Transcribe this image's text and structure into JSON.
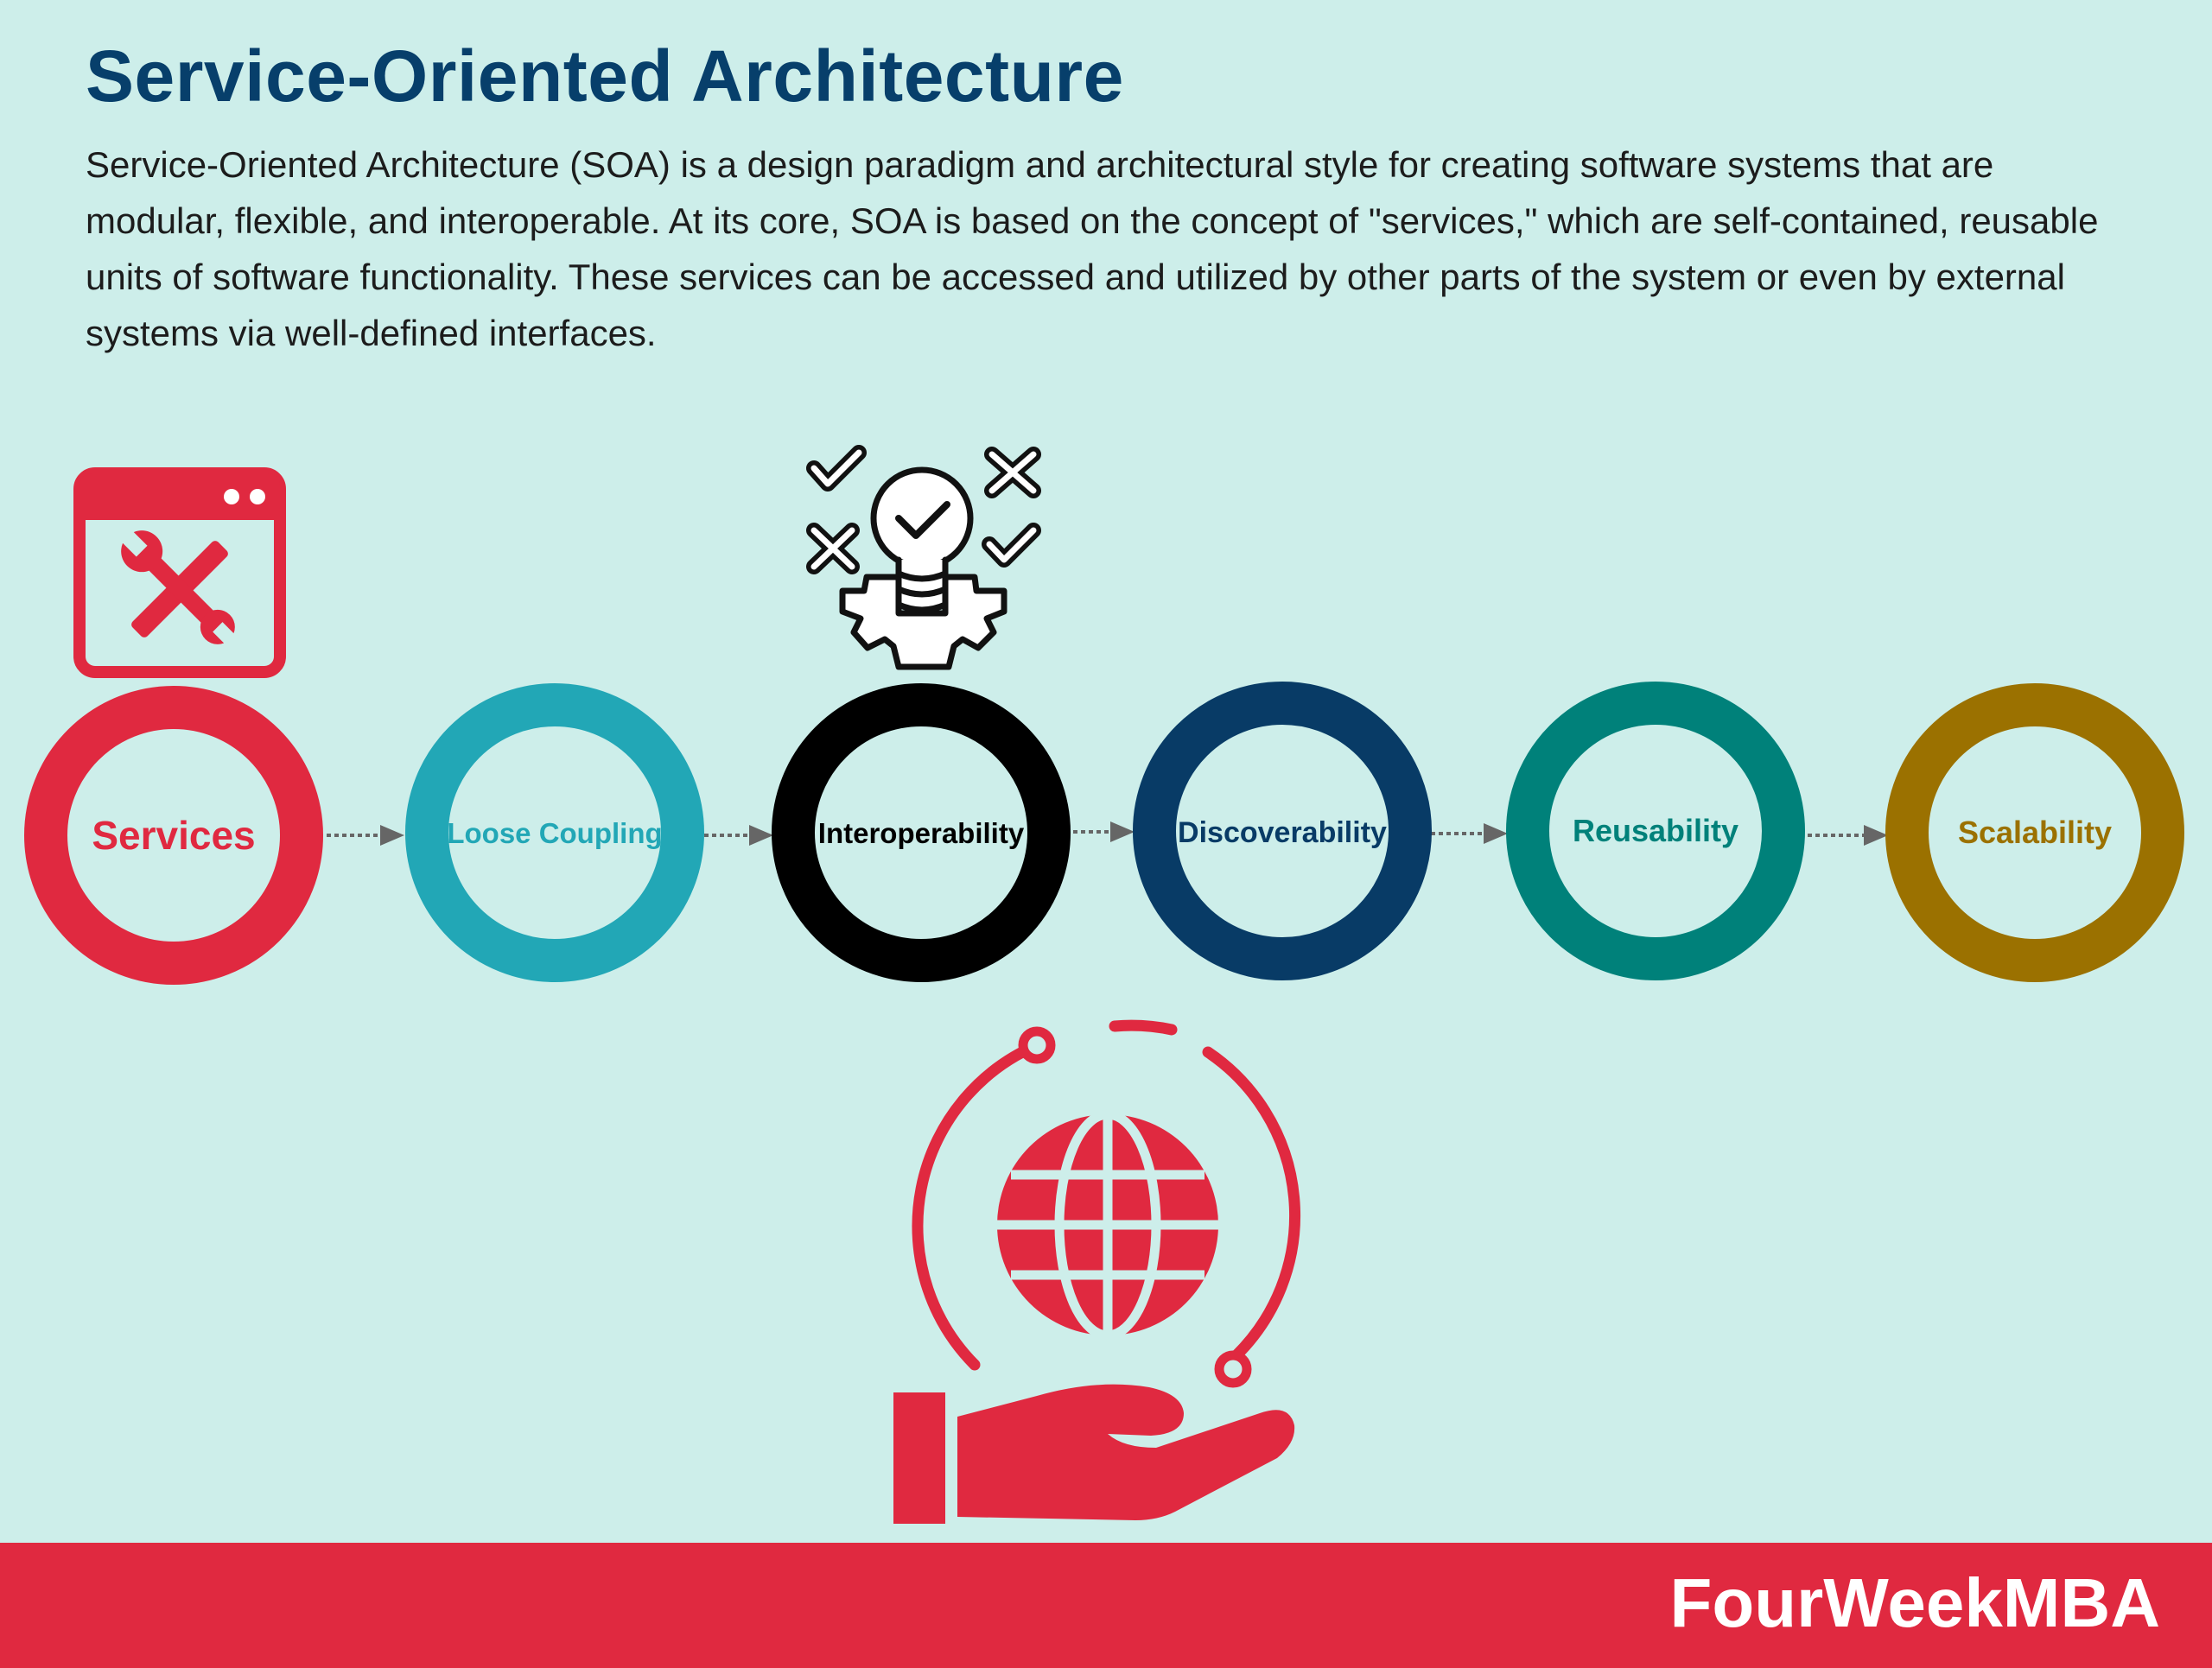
{
  "title": "Service-Oriented Architecture",
  "description": "Service-Oriented Architecture (SOA) is a design paradigm and architectural style for creating software systems that are modular, flexible, and interoperable. At its core, SOA is based on the concept of \"services,\" which are self-contained, reusable units of software functionality. These services can be accessed and utilized by other parts of the system or even by external systems via well-defined interfaces.",
  "nodes": [
    {
      "label": "Services",
      "color": "#e02940"
    },
    {
      "label": "Loose Coupling",
      "color": "#22a7b6"
    },
    {
      "label": "Interoperability",
      "color": "#000000"
    },
    {
      "label": "Discoverability",
      "color": "#083b66"
    },
    {
      "label": "Reusability",
      "color": "#00817a"
    },
    {
      "label": "Scalability",
      "color": "#9b7100"
    }
  ],
  "icons": [
    "browser-tools-icon",
    "lightbulb-gear-checks-icon",
    "globe-in-hand-icon"
  ],
  "arrow_color": "#666666",
  "brand": "FourWeekMBA"
}
